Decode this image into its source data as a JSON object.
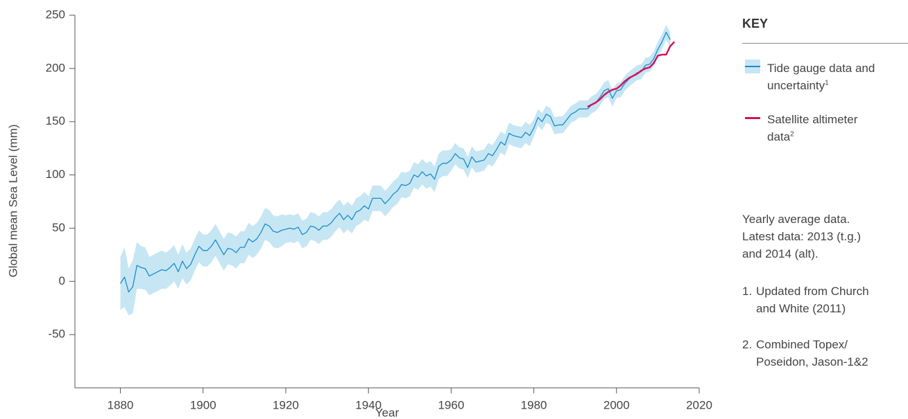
{
  "chart_data": {
    "type": "line",
    "y_label": "Global mean Sea Level (mm)",
    "x_label": "Year",
    "xlim": [
      1869,
      2020
    ],
    "xticks": [
      1880,
      1900,
      1920,
      1940,
      1960,
      1980,
      2000,
      2020
    ],
    "ylim": [
      -100,
      250
    ],
    "yticks": [
      -50,
      0,
      50,
      100,
      150,
      200,
      250
    ],
    "legend_title": "KEY",
    "series": [
      {
        "name": "Tide gauge data and uncertainty",
        "footnote": "1",
        "color": "#1a8ccc",
        "band_color": "#c6e6f4",
        "x": [
          1880,
          1881,
          1882,
          1883,
          1884,
          1885,
          1886,
          1887,
          1888,
          1889,
          1890,
          1891,
          1892,
          1893,
          1894,
          1895,
          1896,
          1897,
          1898,
          1899,
          1900,
          1901,
          1902,
          1903,
          1904,
          1905,
          1906,
          1907,
          1908,
          1909,
          1910,
          1911,
          1912,
          1913,
          1914,
          1915,
          1916,
          1917,
          1918,
          1919,
          1920,
          1921,
          1922,
          1923,
          1924,
          1925,
          1926,
          1927,
          1928,
          1929,
          1930,
          1931,
          1932,
          1933,
          1934,
          1935,
          1936,
          1937,
          1938,
          1939,
          1940,
          1941,
          1942,
          1943,
          1944,
          1945,
          1946,
          1947,
          1948,
          1949,
          1950,
          1951,
          1952,
          1953,
          1954,
          1955,
          1956,
          1957,
          1958,
          1959,
          1960,
          1961,
          1962,
          1963,
          1964,
          1965,
          1966,
          1967,
          1968,
          1969,
          1970,
          1971,
          1972,
          1973,
          1974,
          1975,
          1976,
          1977,
          1978,
          1979,
          1980,
          1981,
          1982,
          1983,
          1984,
          1985,
          1986,
          1987,
          1988,
          1989,
          1990,
          1991,
          1992,
          1993,
          1994,
          1995,
          1996,
          1997,
          1998,
          1999,
          2000,
          2001,
          2002,
          2003,
          2004,
          2005,
          2006,
          2007,
          2008,
          2009,
          2010,
          2011,
          2012,
          2013
        ],
        "values": [
          -2,
          4,
          -10,
          -5,
          15,
          13,
          12,
          5,
          7,
          9,
          11,
          10,
          13,
          17,
          9,
          19,
          12,
          16,
          25,
          33,
          29,
          29,
          33,
          39,
          32,
          25,
          31,
          30,
          27,
          32,
          32,
          40,
          37,
          40,
          46,
          54,
          52,
          47,
          46,
          48,
          49,
          50,
          49,
          51,
          44,
          46,
          52,
          51,
          48,
          52,
          52,
          55,
          60,
          64,
          58,
          62,
          58,
          65,
          67,
          71,
          68,
          78,
          78,
          78,
          73,
          77,
          82,
          85,
          91,
          90,
          92,
          100,
          98,
          103,
          99,
          101,
          96,
          108,
          111,
          111,
          114,
          120,
          116,
          115,
          107,
          117,
          112,
          113,
          114,
          120,
          118,
          124,
          131,
          128,
          139,
          137,
          136,
          135,
          140,
          137,
          144,
          154,
          150,
          157,
          155,
          146,
          147,
          147,
          152,
          157,
          159,
          162,
          162,
          162,
          166,
          168,
          173,
          179,
          181,
          172,
          179,
          180,
          186,
          190,
          193,
          196,
          197,
          203,
          204,
          209,
          218,
          225,
          234,
          227
        ],
        "uncertainty": [
          25,
          28,
          22,
          25,
          22,
          20,
          20,
          18,
          18,
          18,
          18,
          17,
          17,
          17,
          16,
          16,
          15,
          15,
          15,
          15,
          15,
          15,
          15,
          15,
          15,
          15,
          15,
          15,
          15,
          15,
          15,
          15,
          15,
          15,
          15,
          15,
          15,
          15,
          15,
          15,
          13,
          13,
          13,
          13,
          13,
          13,
          13,
          13,
          13,
          13,
          13,
          13,
          13,
          13,
          13,
          13,
          13,
          13,
          13,
          13,
          12,
          12,
          12,
          12,
          12,
          12,
          12,
          12,
          12,
          12,
          12,
          12,
          12,
          12,
          12,
          12,
          12,
          12,
          12,
          12,
          10,
          10,
          10,
          10,
          10,
          10,
          10,
          10,
          10,
          10,
          10,
          10,
          10,
          10,
          10,
          10,
          10,
          10,
          10,
          10,
          8,
          8,
          8,
          8,
          8,
          8,
          8,
          8,
          8,
          8,
          8,
          8,
          8,
          8,
          8,
          8,
          8,
          8,
          8,
          8,
          7,
          7,
          7,
          7,
          7,
          7,
          7,
          7,
          7,
          7,
          7,
          7,
          7,
          7
        ]
      },
      {
        "name": "Satellite altimeter data",
        "footnote": "2",
        "color": "#d4145a",
        "x": [
          1993,
          1994,
          1995,
          1996,
          1997,
          1998,
          1999,
          2000,
          2001,
          2002,
          2003,
          2004,
          2005,
          2006,
          2007,
          2008,
          2009,
          2010,
          2011,
          2012,
          2013,
          2014
        ],
        "values": [
          164,
          166,
          168,
          171,
          175,
          178,
          180,
          181,
          184,
          188,
          191,
          193,
          195,
          198,
          200,
          201,
          205,
          212,
          213,
          213,
          221,
          225
        ]
      }
    ],
    "notes": [
      "Yearly average data.",
      "Latest data: 2013 (t.g.)",
      "and 2014 (alt)."
    ],
    "footnotes": [
      {
        "marker": "1.",
        "lines": [
          "Updated from Church",
          "and White (2011)"
        ]
      },
      {
        "marker": "2.",
        "lines": [
          "Combined Topex/",
          "Poseidon, Jason-1&2"
        ]
      }
    ]
  }
}
